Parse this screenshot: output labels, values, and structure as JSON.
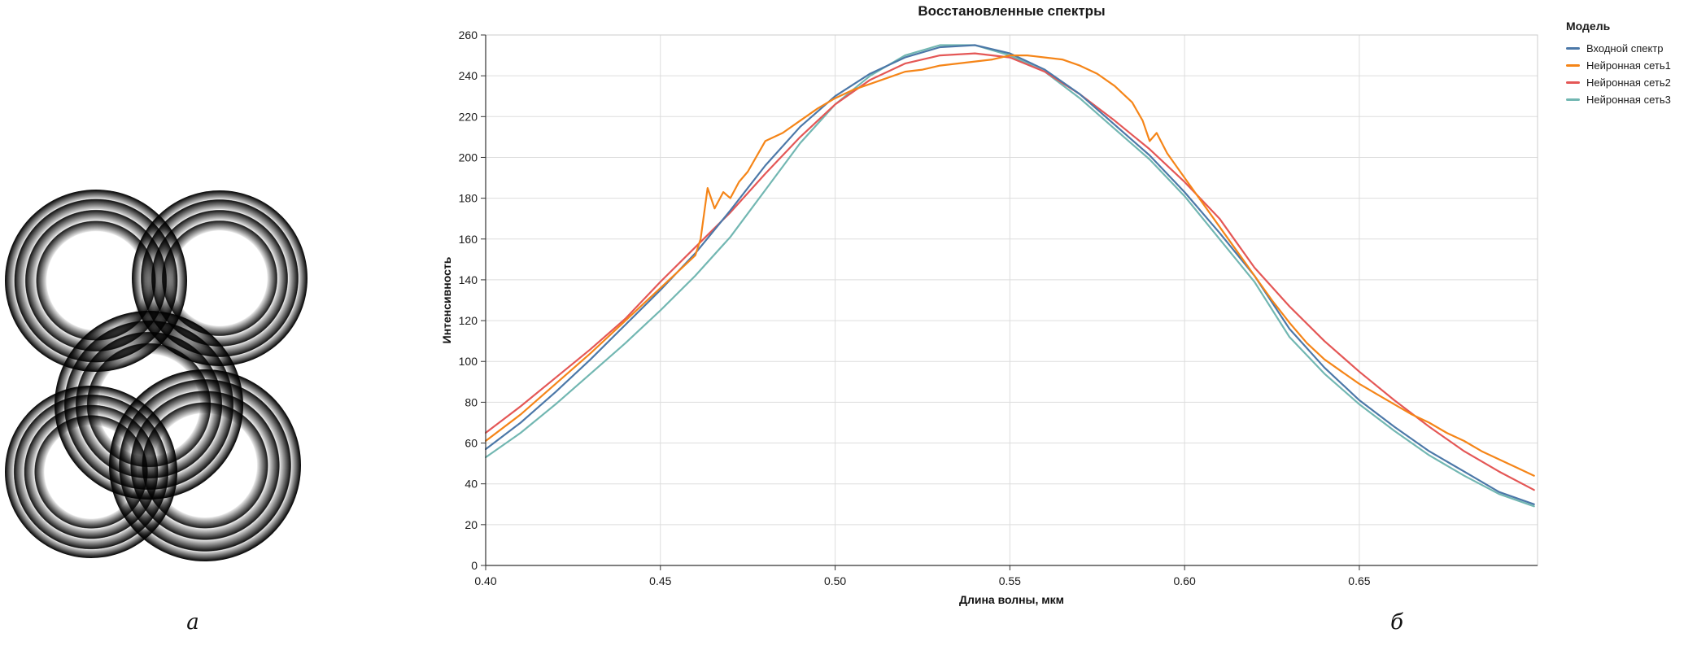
{
  "labels": {
    "a": "а",
    "b": "б"
  },
  "chart_data": {
    "type": "line",
    "title": "Восстановленные спектры",
    "xlabel": "Длина волны, мкм",
    "ylabel": "Интенсивность",
    "legend_title": "Модель",
    "legend_position": "right",
    "grid": true,
    "xlim": [
      0.4,
      0.701
    ],
    "ylim": [
      0,
      260
    ],
    "x_ticks": [
      0.4,
      0.45,
      0.5,
      0.55,
      0.6,
      0.65
    ],
    "x_tick_labels": [
      "0.40",
      "0.45",
      "0.50",
      "0.55",
      "0.60",
      "0.65"
    ],
    "y_ticks": [
      0,
      20,
      40,
      60,
      80,
      100,
      120,
      140,
      160,
      180,
      200,
      220,
      240,
      260
    ],
    "series": [
      {
        "name": "Входной спектр",
        "color": "#4c78a8",
        "x": [
          0.4,
          0.41,
          0.42,
          0.43,
          0.44,
          0.45,
          0.46,
          0.47,
          0.48,
          0.49,
          0.5,
          0.51,
          0.52,
          0.53,
          0.54,
          0.55,
          0.56,
          0.57,
          0.58,
          0.59,
          0.6,
          0.61,
          0.62,
          0.63,
          0.64,
          0.65,
          0.66,
          0.67,
          0.68,
          0.69,
          0.7
        ],
        "y": [
          57,
          70,
          85,
          101,
          118,
          135,
          153,
          174,
          196,
          215,
          230,
          241,
          249,
          254,
          255,
          251,
          243,
          231,
          216,
          201,
          183,
          163,
          142,
          116,
          97,
          81,
          68,
          56,
          46,
          36,
          30
        ]
      },
      {
        "name": "Нейронная сеть1",
        "color": "#f58518",
        "x": [
          0.4,
          0.41,
          0.42,
          0.43,
          0.44,
          0.45,
          0.455,
          0.46,
          0.4615,
          0.4635,
          0.4655,
          0.468,
          0.47,
          0.4725,
          0.475,
          0.48,
          0.485,
          0.49,
          0.495,
          0.5,
          0.505,
          0.51,
          0.515,
          0.52,
          0.525,
          0.53,
          0.535,
          0.54,
          0.545,
          0.55,
          0.555,
          0.56,
          0.565,
          0.57,
          0.575,
          0.58,
          0.585,
          0.588,
          0.59,
          0.592,
          0.595,
          0.6,
          0.605,
          0.61,
          0.615,
          0.62,
          0.625,
          0.63,
          0.635,
          0.64,
          0.645,
          0.65,
          0.655,
          0.66,
          0.665,
          0.67,
          0.675,
          0.68,
          0.685,
          0.69,
          0.695,
          0.7
        ],
        "y": [
          61,
          74,
          89,
          104,
          120,
          136,
          144,
          152,
          160,
          185,
          175,
          183,
          180,
          188,
          193,
          208,
          212,
          218,
          224,
          229,
          233,
          236,
          239,
          242,
          243,
          245,
          246,
          247,
          248,
          250,
          250,
          249,
          248,
          245,
          241,
          235,
          227,
          218,
          208,
          212,
          202,
          190,
          178,
          166,
          154,
          142,
          130,
          119,
          109,
          101,
          95,
          89,
          84,
          79,
          74,
          70,
          65,
          61,
          56,
          52,
          48,
          44
        ]
      },
      {
        "name": "Нейронная сеть2",
        "color": "#e45756",
        "x": [
          0.4,
          0.41,
          0.42,
          0.43,
          0.44,
          0.45,
          0.46,
          0.47,
          0.48,
          0.49,
          0.5,
          0.51,
          0.52,
          0.53,
          0.54,
          0.55,
          0.56,
          0.57,
          0.58,
          0.59,
          0.6,
          0.61,
          0.62,
          0.63,
          0.64,
          0.65,
          0.66,
          0.67,
          0.68,
          0.69,
          0.7
        ],
        "y": [
          65,
          78,
          92,
          106,
          121,
          139,
          156,
          173,
          192,
          210,
          226,
          238,
          246,
          250,
          251,
          249,
          242,
          231,
          218,
          204,
          188,
          170,
          146,
          127,
          110,
          95,
          81,
          68,
          56,
          46,
          37
        ]
      },
      {
        "name": "Нейронная сеть3",
        "color": "#72b7b2",
        "x": [
          0.4,
          0.41,
          0.42,
          0.43,
          0.44,
          0.45,
          0.46,
          0.47,
          0.48,
          0.49,
          0.5,
          0.51,
          0.52,
          0.53,
          0.54,
          0.55,
          0.56,
          0.57,
          0.58,
          0.59,
          0.6,
          0.61,
          0.62,
          0.63,
          0.64,
          0.65,
          0.66,
          0.67,
          0.68,
          0.69,
          0.7
        ],
        "y": [
          53,
          65,
          79,
          94,
          109,
          125,
          142,
          161,
          184,
          207,
          226,
          240,
          250,
          255,
          255,
          250,
          242,
          229,
          214,
          199,
          181,
          160,
          139,
          112,
          94,
          79,
          66,
          54,
          44,
          35,
          29
        ]
      }
    ]
  }
}
